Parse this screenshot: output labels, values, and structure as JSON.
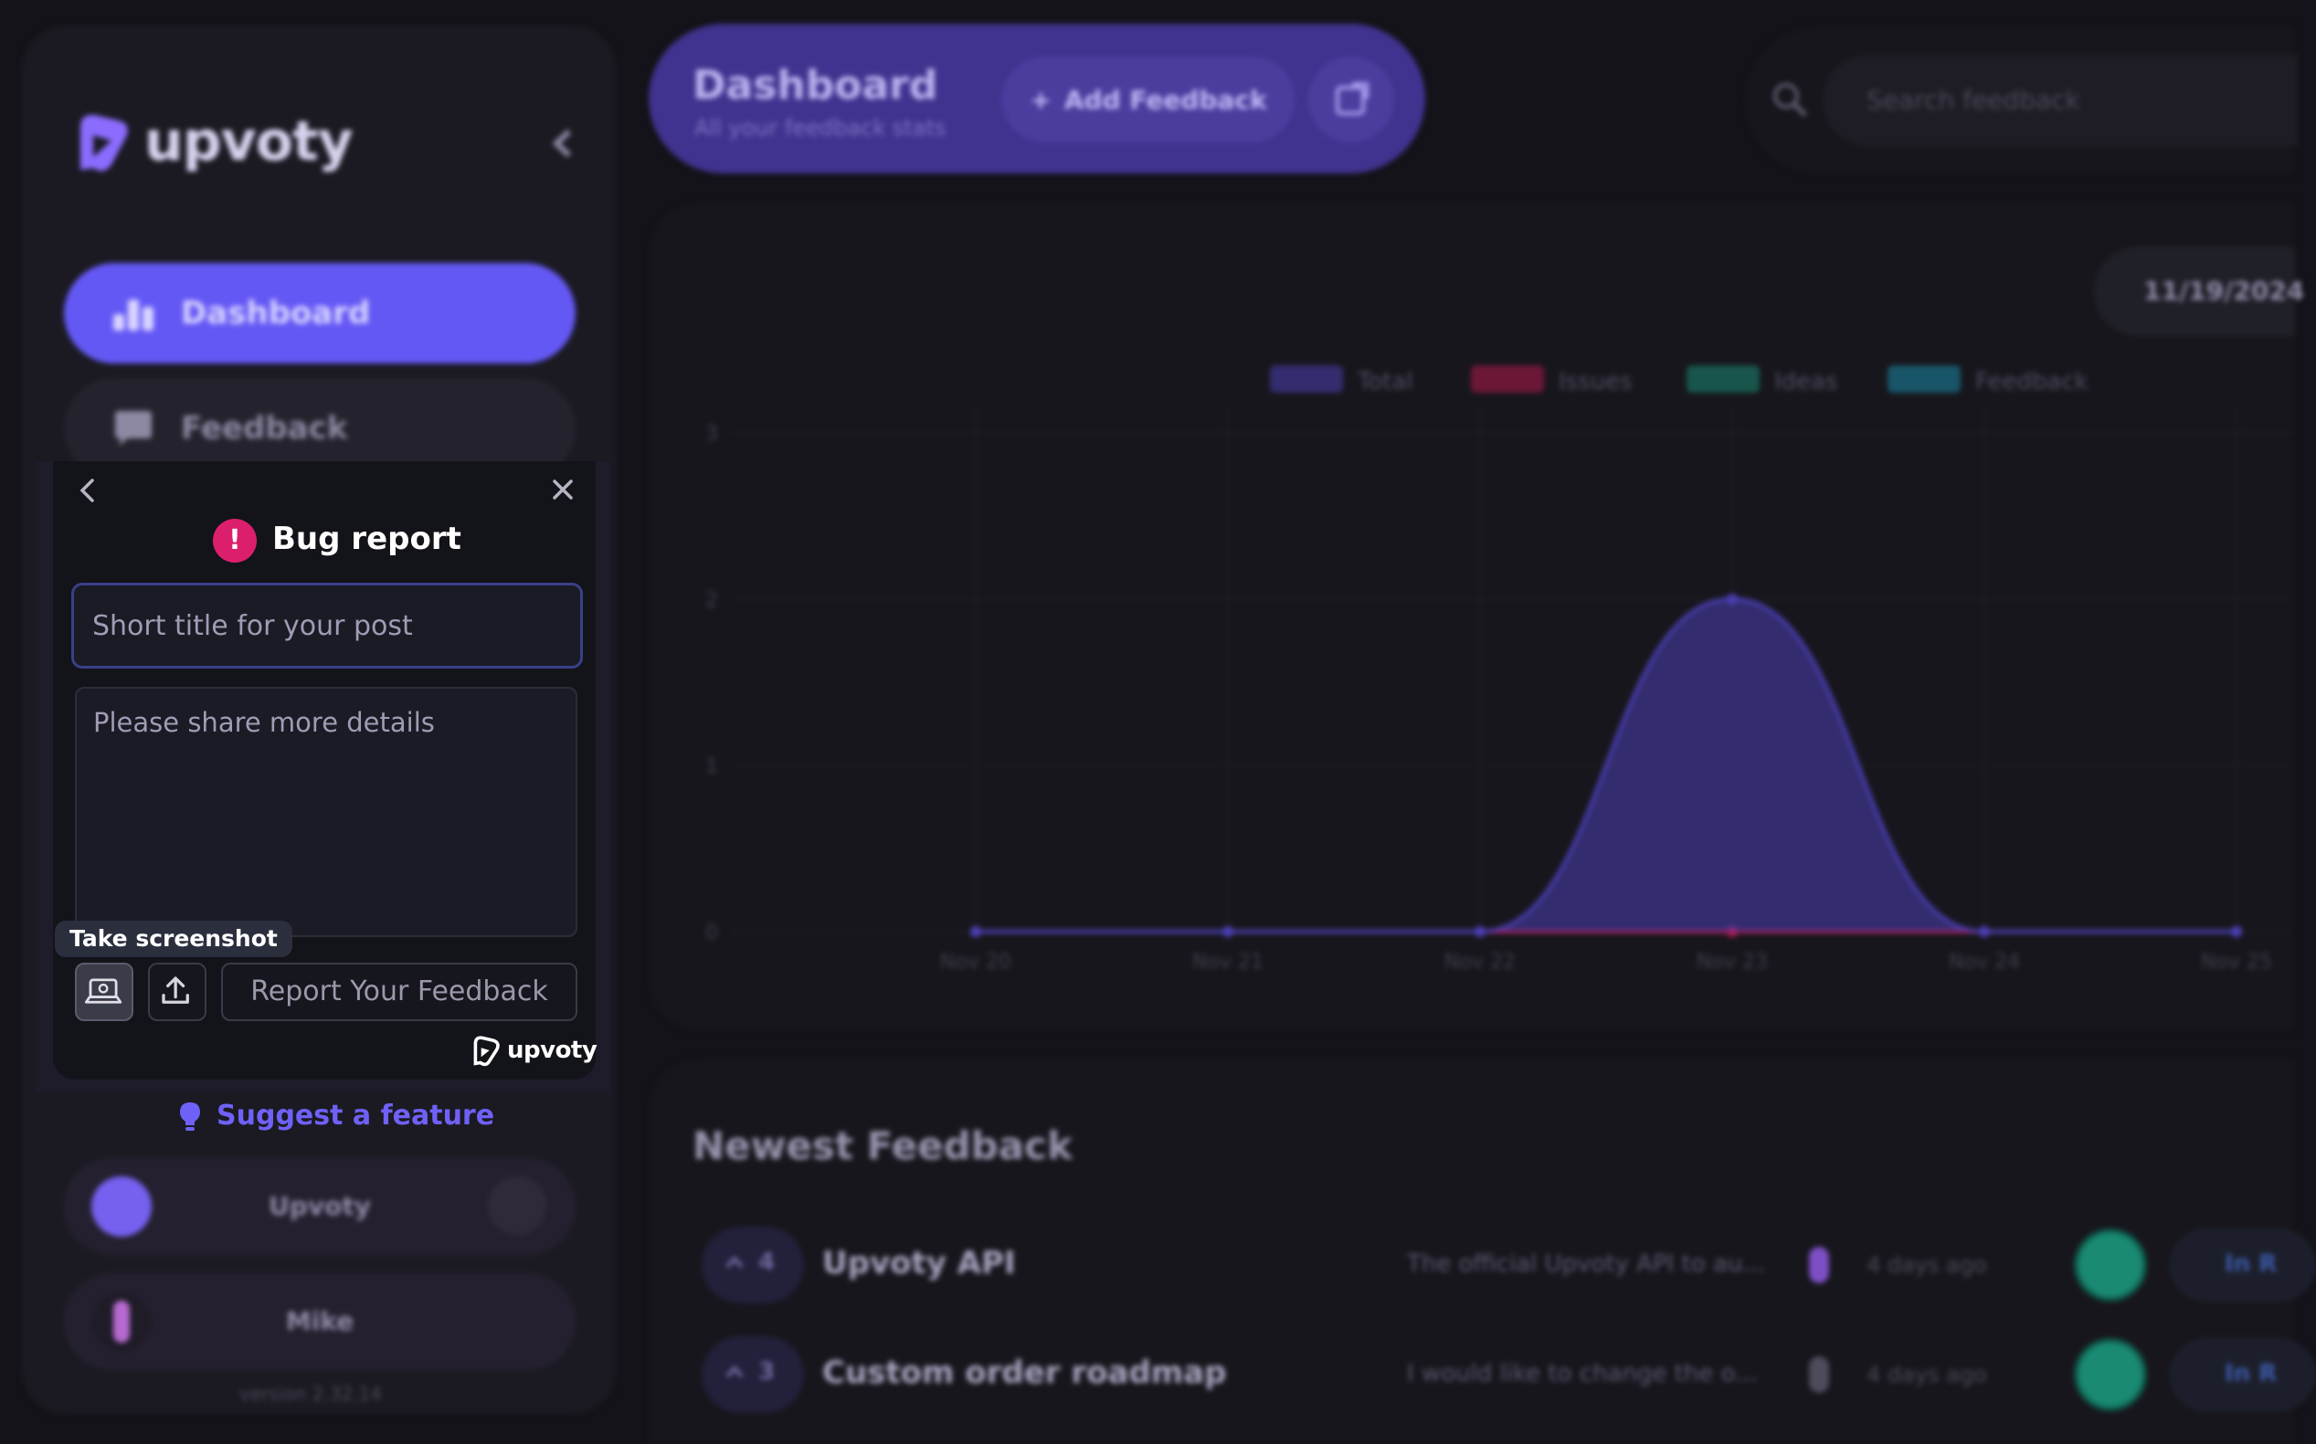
{
  "sidebar": {
    "logo_text": "upvoty",
    "nav": [
      {
        "label": "Dashboard",
        "icon": "chart-icon"
      },
      {
        "label": "Feedback",
        "icon": "chat-icon"
      }
    ],
    "suggest_label": "Suggest a feature",
    "users": [
      {
        "name": "Upvoty"
      },
      {
        "name": "Mike"
      }
    ],
    "version": "version 2.32.14"
  },
  "header": {
    "title": "Dashboard",
    "subtitle": "All your feedback stats",
    "add_label": "Add Feedback",
    "search_placeholder": "Search feedback"
  },
  "chart_card": {
    "date_range": "11/19/2024",
    "legend": [
      "Total",
      "Issues",
      "Ideas",
      "Feedback"
    ]
  },
  "chart_data": {
    "type": "area",
    "x": [
      "Nov 20",
      "Nov 21",
      "Nov 22",
      "Nov 23",
      "Nov 24",
      "Nov 25"
    ],
    "yticks": [
      "0",
      "1",
      "2",
      "3"
    ],
    "ylim": [
      0,
      3
    ],
    "series": [
      {
        "name": "Total",
        "values": [
          0,
          0,
          0,
          2,
          0,
          0
        ],
        "color": "#4a3fb3"
      },
      {
        "name": "Issues",
        "values": [
          0,
          0,
          0,
          0,
          0,
          0
        ],
        "color": "#b3194f"
      },
      {
        "name": "Ideas",
        "values": [
          0,
          0,
          0,
          0,
          0,
          0
        ],
        "color": "#1a8a72"
      },
      {
        "name": "Feedback",
        "values": [
          0,
          0,
          0,
          0,
          0,
          0
        ],
        "color": "#1a8aa8"
      }
    ]
  },
  "newest": {
    "title": "Newest Feedback",
    "rows": [
      {
        "votes": "4",
        "title": "Upvoty API",
        "desc": "The official Upvoty API to au...",
        "time": "4 days ago",
        "status": "In R"
      },
      {
        "votes": "3",
        "title": "Custom order roadmap",
        "desc": "I would like to change the o...",
        "time": "4 days ago",
        "status": "In R"
      }
    ]
  },
  "popup": {
    "title": "Bug report",
    "title_placeholder": "Short title for your post",
    "details_placeholder": "Please share more details",
    "tooltip": "Take screenshot",
    "submit_label": "Report Your Feedback",
    "brand": "upvoty",
    "colors": {
      "accent": "#dc1f6d",
      "brand": "#6458f5"
    }
  }
}
